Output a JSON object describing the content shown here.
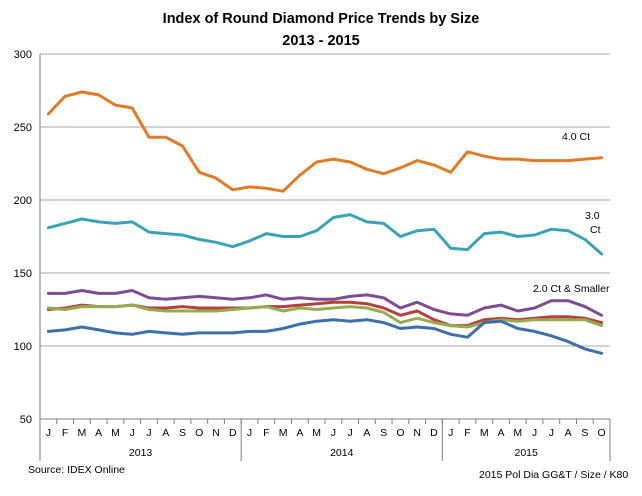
{
  "chart_data": {
    "type": "line",
    "title": "Index of Round Diamond Price Trends by Size",
    "subtitle": "2013 - 2015",
    "ylim": [
      50,
      300
    ],
    "y_ticks": [
      50,
      100,
      150,
      200,
      250,
      300
    ],
    "grid": true,
    "x": [
      "J",
      "F",
      "M",
      "A",
      "M",
      "J",
      "J",
      "A",
      "S",
      "O",
      "N",
      "D",
      "J",
      "F",
      "M",
      "A",
      "M",
      "J",
      "J",
      "A",
      "S",
      "O",
      "N",
      "D",
      "J",
      "F",
      "M",
      "A",
      "M",
      "J",
      "J",
      "A",
      "S",
      "O"
    ],
    "year_labels": [
      {
        "label": "2013",
        "start": 0,
        "end": 11
      },
      {
        "label": "2014",
        "start": 12,
        "end": 23
      },
      {
        "label": "2015",
        "start": 24,
        "end": 33
      }
    ],
    "series": [
      {
        "name": "4.0 Ct",
        "color": "#E07B27",
        "values": [
          259,
          271,
          274,
          272,
          265,
          263,
          243,
          243,
          237,
          219,
          215,
          207,
          209,
          208,
          206,
          217,
          226,
          228,
          226,
          221,
          218,
          222,
          227,
          224,
          219,
          233,
          230,
          228,
          228,
          227,
          227,
          227,
          228,
          229
        ]
      },
      {
        "name": "3.0 Ct",
        "color": "#3AA3B8",
        "values": [
          181,
          184,
          187,
          185,
          184,
          185,
          178,
          177,
          176,
          173,
          171,
          168,
          172,
          177,
          175,
          175,
          179,
          188,
          190,
          185,
          184,
          175,
          179,
          180,
          167,
          166,
          177,
          178,
          175,
          176,
          180,
          179,
          173,
          163
        ]
      },
      {
        "name": "",
        "color": "#7E4C94",
        "values": [
          136,
          136,
          138,
          136,
          136,
          138,
          133,
          132,
          133,
          134,
          133,
          132,
          133,
          135,
          132,
          133,
          132,
          132,
          134,
          135,
          133,
          126,
          130,
          125,
          122,
          121,
          126,
          128,
          124,
          126,
          131,
          131,
          127,
          121
        ]
      },
      {
        "name": "",
        "color": "#B5413E",
        "values": [
          125,
          126,
          128,
          127,
          127,
          128,
          126,
          126,
          127,
          126,
          126,
          126,
          126,
          127,
          127,
          128,
          129,
          130,
          130,
          129,
          126,
          121,
          124,
          118,
          114,
          114,
          118,
          119,
          118,
          119,
          120,
          120,
          119,
          116
        ]
      },
      {
        "name": "2.0 Ct & Smaller",
        "color": "#96AB4F",
        "values": [
          126,
          125,
          127,
          127,
          127,
          128,
          125,
          124,
          124,
          124,
          124,
          125,
          126,
          127,
          124,
          126,
          125,
          126,
          127,
          126,
          123,
          116,
          119,
          116,
          114,
          113,
          116,
          118,
          117,
          118,
          118,
          118,
          118,
          114
        ]
      },
      {
        "name": "",
        "color": "#3E6FA8",
        "values": [
          110,
          111,
          113,
          111,
          109,
          108,
          110,
          109,
          108,
          109,
          109,
          109,
          110,
          110,
          112,
          115,
          117,
          118,
          117,
          118,
          116,
          112,
          113,
          112,
          108,
          106,
          116,
          117,
          112,
          110,
          107,
          103,
          98,
          95
        ]
      }
    ]
  },
  "footer": {
    "source": "Source:  IDEX Online",
    "credit": "2015 Pol Dia GG&T / Size / K80"
  }
}
